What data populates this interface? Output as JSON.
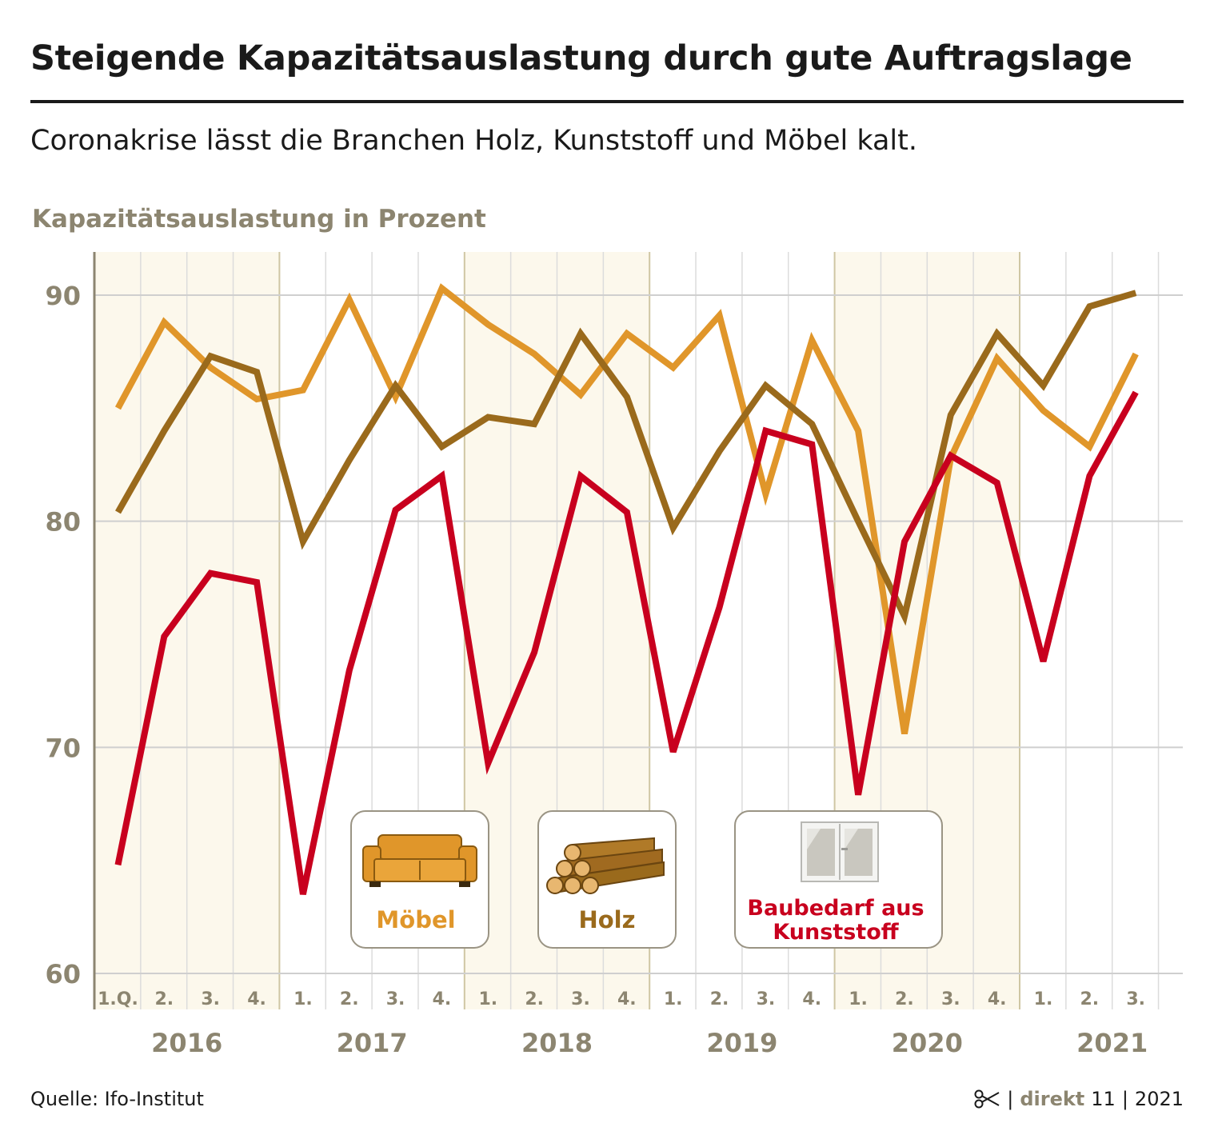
{
  "title": "Steigende Kapazitätsauslastung durch gute Auftragslage",
  "subtitle": "Coronakrise lässt die Branchen Holz, Kunststoff und Möbel kalt.",
  "source": "Quelle: Ifo-Institut",
  "footer": {
    "separator1": "|",
    "brand": "direkt",
    "issue": "11",
    "separator2": "|",
    "year": "2021"
  },
  "icons": {
    "footer": "scissors-icon",
    "moebel": "sofa-icon",
    "holz": "logs-icon",
    "kunststoff": "window-icon"
  },
  "colors": {
    "moebel": "#e0962a",
    "holz": "#9a6a1c",
    "kunststoff": "#c8001e",
    "axis": "#8c8570",
    "band": "#fcf8ec"
  },
  "chart_data": {
    "type": "line",
    "ylabel": "Kapazitätsauslastung in Prozent",
    "ylim": [
      60,
      92
    ],
    "yticks": [
      60,
      70,
      80,
      90
    ],
    "grid": true,
    "quarter_labels": [
      "1.Q.",
      "2.",
      "3.",
      "4.",
      "1.",
      "2.",
      "3.",
      "4.",
      "1.",
      "2.",
      "3.",
      "4.",
      "1.",
      "2.",
      "3.",
      "4.",
      "1.",
      "2.",
      "3.",
      "4.",
      "1.",
      "2.",
      "3."
    ],
    "years": [
      "2016",
      "2017",
      "2018",
      "2019",
      "2020",
      "2021"
    ],
    "series": [
      {
        "name": "Möbel",
        "color": "#e0962a",
        "values": [
          85.0,
          88.8,
          86.8,
          85.4,
          85.8,
          89.8,
          85.5,
          90.3,
          88.7,
          87.4,
          85.6,
          88.3,
          86.8,
          89.1,
          81.2,
          88.0,
          84.0,
          70.6,
          82.8,
          87.2,
          84.9,
          83.3,
          87.4
        ]
      },
      {
        "name": "Holz",
        "color": "#9a6a1c",
        "values": [
          80.4,
          84.0,
          87.3,
          86.6,
          79.1,
          82.7,
          86.0,
          83.3,
          84.6,
          84.3,
          88.3,
          85.5,
          79.7,
          83.1,
          86.0,
          84.3,
          80.0,
          75.8,
          84.7,
          88.3,
          86.0,
          89.5,
          90.1
        ]
      },
      {
        "name": "Baubedarf aus Kunststoff",
        "color": "#c8001e",
        "values": [
          64.8,
          74.9,
          77.7,
          77.3,
          63.5,
          73.4,
          80.5,
          82.0,
          69.3,
          74.2,
          82.0,
          80.4,
          69.8,
          76.2,
          84.0,
          83.4,
          67.9,
          79.1,
          82.9,
          81.7,
          73.8,
          82.0,
          85.7
        ]
      }
    ],
    "legend": [
      {
        "label": "Möbel",
        "icon": "sofa-icon"
      },
      {
        "label": "Holz",
        "icon": "logs-icon"
      },
      {
        "label1": "Baubedarf aus",
        "label2": "Kunststoff",
        "icon": "window-icon"
      }
    ]
  }
}
